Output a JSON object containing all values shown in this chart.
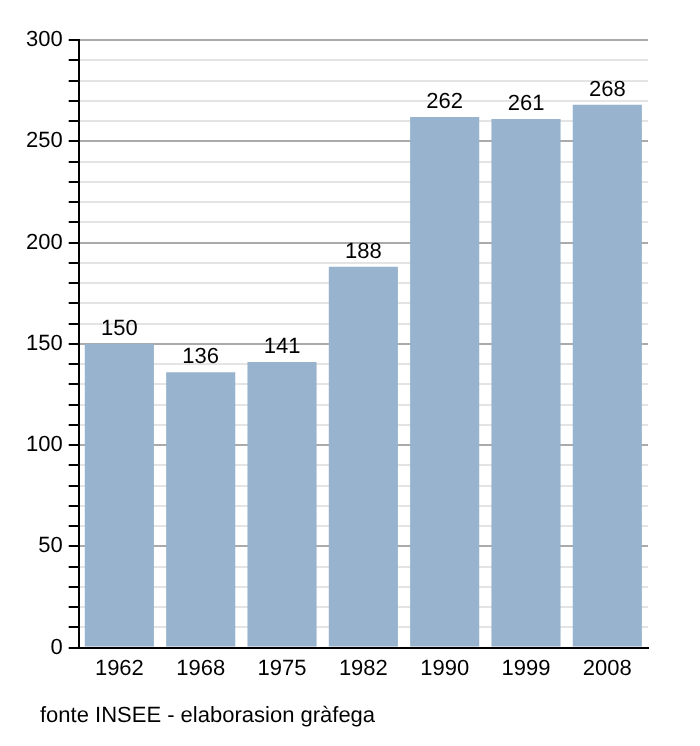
{
  "chart_data": {
    "type": "bar",
    "categories": [
      "1962",
      "1968",
      "1975",
      "1982",
      "1990",
      "1999",
      "2008"
    ],
    "values": [
      150,
      136,
      141,
      188,
      262,
      261,
      268
    ],
    "color": "#98b3cd",
    "ylim": [
      0,
      300
    ],
    "yticks": [
      0,
      {
        "value": 10,
        "label": null
      },
      {
        "value": 20,
        "label": null
      },
      {
        "value": 30,
        "label": null
      },
      {
        "value": 40,
        "label": null
      },
      50,
      {
        "value": 60,
        "label": null
      },
      {
        "value": 70,
        "label": null
      },
      {
        "value": 80,
        "label": null
      },
      {
        "value": 90,
        "label": null
      },
      100,
      {
        "value": 110,
        "label": null
      },
      {
        "value": 120,
        "label": null
      },
      {
        "value": 130,
        "label": null
      },
      {
        "value": 140,
        "label": null
      },
      150,
      {
        "value": 160,
        "label": null
      },
      {
        "value": 170,
        "label": null
      },
      {
        "value": 180,
        "label": null
      },
      {
        "value": 190,
        "label": null
      },
      200,
      {
        "value": 210,
        "label": null
      },
      {
        "value": 220,
        "label": null
      },
      {
        "value": 230,
        "label": null
      },
      {
        "value": 240,
        "label": null
      },
      250,
      {
        "value": 260,
        "label": null
      },
      {
        "value": 270,
        "label": null
      },
      {
        "value": 280,
        "label": null
      },
      {
        "value": 290,
        "label": null
      },
      300
    ],
    "grid": "y",
    "data_labels": true,
    "annotations": [
      "fonte INSEE - elaborasion gràfega"
    ]
  }
}
